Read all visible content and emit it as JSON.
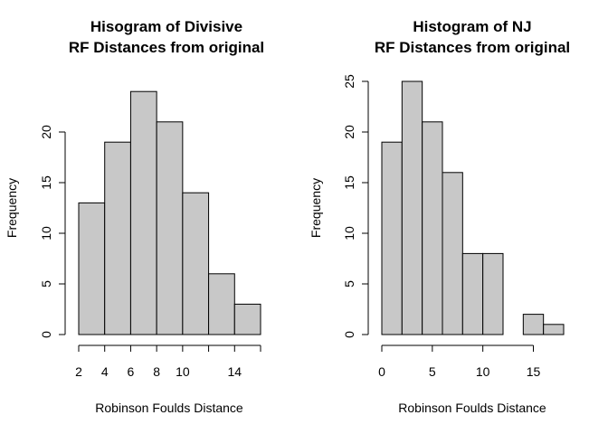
{
  "chart_data": [
    {
      "type": "bar",
      "title_lines": [
        "Hisogram of Divisive",
        "RF Distances from original"
      ],
      "xlabel": "Robinson Foulds Distance",
      "ylabel": "Frequency",
      "bins": [
        [
          2,
          4
        ],
        [
          4,
          6
        ],
        [
          6,
          8
        ],
        [
          8,
          10
        ],
        [
          10,
          12
        ],
        [
          12,
          14
        ],
        [
          14,
          16
        ]
      ],
      "values": [
        13,
        19,
        24,
        21,
        14,
        6,
        3
      ],
      "xlim": [
        2,
        16
      ],
      "ylim": [
        0,
        25
      ],
      "x_ticks": [
        2,
        4,
        6,
        8,
        10,
        12,
        14,
        16
      ],
      "x_tick_labels": [
        "2",
        "4",
        "6",
        "8",
        "10",
        "",
        "14",
        ""
      ],
      "y_ticks": [
        0,
        5,
        10,
        15,
        20
      ],
      "y_tick_labels": [
        "0",
        "5",
        "10",
        "15",
        "20"
      ],
      "bar_color": "#c8c8c8",
      "grid": false
    },
    {
      "type": "bar",
      "title_lines": [
        "Histogram of NJ",
        "RF Distances from original"
      ],
      "xlabel": "Robinson Foulds Distance",
      "ylabel": "Frequency",
      "bins": [
        [
          0,
          2
        ],
        [
          2,
          4
        ],
        [
          4,
          6
        ],
        [
          6,
          8
        ],
        [
          8,
          10
        ],
        [
          10,
          12
        ],
        [
          12,
          14
        ],
        [
          14,
          16
        ],
        [
          16,
          18
        ]
      ],
      "values": [
        19,
        25,
        21,
        16,
        8,
        8,
        0,
        2,
        1
      ],
      "xlim": [
        0,
        18
      ],
      "ylim": [
        0,
        25
      ],
      "x_ticks": [
        0,
        5,
        10,
        15
      ],
      "x_tick_labels": [
        "0",
        "5",
        "10",
        "15"
      ],
      "y_ticks": [
        0,
        5,
        10,
        15,
        20,
        25
      ],
      "y_tick_labels": [
        "0",
        "5",
        "10",
        "15",
        "20",
        "25"
      ],
      "bar_color": "#c8c8c8",
      "grid": false
    }
  ]
}
